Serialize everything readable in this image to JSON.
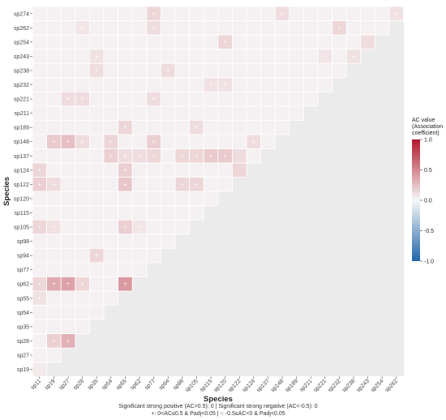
{
  "chart_data": {
    "type": "heatmap",
    "title": "",
    "xlabel": "Species",
    "ylabel": "Species",
    "species": [
      "sp11",
      "sp19",
      "sp27",
      "sp28",
      "sp35",
      "sp54",
      "sp55",
      "sp62",
      "sp77",
      "sp94",
      "sp98",
      "sp105",
      "sp115",
      "sp120",
      "sp122",
      "sp124",
      "sp137",
      "sp148",
      "sp189",
      "sp211",
      "sp221",
      "sp232",
      "sp238",
      "sp243",
      "sp254",
      "sp262",
      "sp274"
    ],
    "y_tick_labels": [
      "sp274",
      "sp262",
      "sp254",
      "sp243",
      "sp238",
      "sp232",
      "sp221",
      "sp211",
      "sp189",
      "sp148",
      "sp137",
      "sp124",
      "sp122",
      "sp120",
      "sp115",
      "sp105",
      "sp98",
      "sp94",
      "sp77",
      "sp62",
      "sp55",
      "sp54",
      "sp35",
      "sp28",
      "sp27",
      "sp19"
    ],
    "x_tick_labels": [
      "sp11",
      "sp19",
      "sp27",
      "sp28",
      "sp35",
      "sp54",
      "sp55",
      "sp62",
      "sp77",
      "sp94",
      "sp98",
      "sp105",
      "sp115",
      "sp120",
      "sp122",
      "sp124",
      "sp137",
      "sp148",
      "sp189",
      "sp211",
      "sp221",
      "sp232",
      "sp238",
      "sp243",
      "sp254",
      "sp262"
    ],
    "color_scale": {
      "title": "AC value (Association coefficient)",
      "title_lines": [
        "AC value",
        "(Association",
        "coefficient)"
      ],
      "min": -1.0,
      "max": 1.0,
      "ticks": [
        "1.0",
        "0.5",
        "0.0",
        "-0.5",
        "-1.0"
      ],
      "low_color": "#2166ac",
      "mid_color": "#f7f7f7",
      "high_color": "#b2182b"
    },
    "notable_cells": [
      {
        "row": "sp62",
        "col": "sp19",
        "value": 0.35,
        "sig": true
      },
      {
        "row": "sp62",
        "col": "sp27",
        "value": 0.38,
        "sig": true
      },
      {
        "row": "sp62",
        "col": "sp55",
        "value": 0.42,
        "sig": true
      },
      {
        "row": "sp62",
        "col": "sp28",
        "value": 0.15,
        "sig": true
      },
      {
        "row": "sp62",
        "col": "sp11",
        "value": 0.15,
        "sig": true
      },
      {
        "row": "sp28",
        "col": "sp27",
        "value": 0.32,
        "sig": true
      },
      {
        "row": "sp28",
        "col": "sp19",
        "value": 0.18,
        "sig": true
      },
      {
        "row": "sp105",
        "col": "sp11",
        "value": 0.15,
        "sig": true
      },
      {
        "row": "sp105",
        "col": "sp19",
        "value": 0.1,
        "sig": true
      },
      {
        "row": "sp105",
        "col": "sp55",
        "value": 0.18,
        "sig": true
      },
      {
        "row": "sp105",
        "col": "sp62",
        "value": 0.08,
        "sig": true
      },
      {
        "row": "sp122",
        "col": "sp11",
        "value": 0.18,
        "sig": true
      },
      {
        "row": "sp122",
        "col": "sp19",
        "value": 0.12,
        "sig": true
      },
      {
        "row": "sp122",
        "col": "sp55",
        "value": 0.22,
        "sig": true
      },
      {
        "row": "sp122",
        "col": "sp98",
        "value": 0.15,
        "sig": true
      },
      {
        "row": "sp122",
        "col": "sp105",
        "value": 0.15,
        "sig": true
      },
      {
        "row": "sp124",
        "col": "sp11",
        "value": 0.15,
        "sig": true
      },
      {
        "row": "sp124",
        "col": "sp55",
        "value": 0.18,
        "sig": true
      },
      {
        "row": "sp137",
        "col": "sp54",
        "value": 0.18,
        "sig": true
      },
      {
        "row": "sp137",
        "col": "sp55",
        "value": 0.12,
        "sig": true
      },
      {
        "row": "sp137",
        "col": "sp62",
        "value": 0.12,
        "sig": true
      },
      {
        "row": "sp137",
        "col": "sp77",
        "value": 0.15,
        "sig": true
      },
      {
        "row": "sp137",
        "col": "sp98",
        "value": 0.15,
        "sig": true
      },
      {
        "row": "sp137",
        "col": "sp105",
        "value": 0.15,
        "sig": true
      },
      {
        "row": "sp137",
        "col": "sp115",
        "value": 0.2,
        "sig": true
      },
      {
        "row": "sp137",
        "col": "sp120",
        "value": 0.2,
        "sig": true
      },
      {
        "row": "sp137",
        "col": "sp122",
        "value": 0.12,
        "sig": false
      },
      {
        "row": "sp148",
        "col": "sp19",
        "value": 0.2,
        "sig": true
      },
      {
        "row": "sp148",
        "col": "sp27",
        "value": 0.25,
        "sig": true
      },
      {
        "row": "sp148",
        "col": "sp28",
        "value": 0.12,
        "sig": true
      },
      {
        "row": "sp148",
        "col": "sp54",
        "value": 0.15,
        "sig": true
      },
      {
        "row": "sp148",
        "col": "sp77",
        "value": 0.18,
        "sig": true
      },
      {
        "row": "sp148",
        "col": "sp124",
        "value": 0.12,
        "sig": true
      },
      {
        "row": "sp124",
        "col": "sp122",
        "value": 0.15,
        "sig": false
      },
      {
        "row": "sp189",
        "col": "sp55",
        "value": 0.15,
        "sig": true
      },
      {
        "row": "sp189",
        "col": "sp105",
        "value": 0.12,
        "sig": true
      },
      {
        "row": "sp221",
        "col": "sp27",
        "value": 0.12,
        "sig": true
      },
      {
        "row": "sp221",
        "col": "sp28",
        "value": 0.12,
        "sig": true
      },
      {
        "row": "sp221",
        "col": "sp77",
        "value": 0.12,
        "sig": true
      },
      {
        "row": "sp232",
        "col": "sp115",
        "value": 0.1,
        "sig": true
      },
      {
        "row": "sp232",
        "col": "sp120",
        "value": 0.1,
        "sig": true
      },
      {
        "row": "sp238",
        "col": "sp35",
        "value": 0.12,
        "sig": true
      },
      {
        "row": "sp238",
        "col": "sp94",
        "value": 0.12,
        "sig": true
      },
      {
        "row": "sp243",
        "col": "sp35",
        "value": 0.1,
        "sig": true
      },
      {
        "row": "sp243",
        "col": "sp221",
        "value": 0.08,
        "sig": true
      },
      {
        "row": "sp243",
        "col": "sp238",
        "value": 0.1,
        "sig": true
      },
      {
        "row": "sp254",
        "col": "sp120",
        "value": 0.15,
        "sig": true
      },
      {
        "row": "sp254",
        "col": "sp243",
        "value": 0.12,
        "sig": false
      },
      {
        "row": "sp262",
        "col": "sp28",
        "value": 0.08,
        "sig": true
      },
      {
        "row": "sp262",
        "col": "sp77",
        "value": 0.12,
        "sig": true
      },
      {
        "row": "sp262",
        "col": "sp232",
        "value": 0.15,
        "sig": true
      },
      {
        "row": "sp274",
        "col": "sp77",
        "value": 0.15,
        "sig": true
      },
      {
        "row": "sp274",
        "col": "sp148",
        "value": 0.12,
        "sig": true
      },
      {
        "row": "sp274",
        "col": "sp262",
        "value": 0.1,
        "sig": true
      },
      {
        "row": "sp94",
        "col": "sp35",
        "value": 0.15,
        "sig": true
      },
      {
        "row": "sp55",
        "col": "sp11",
        "value": 0.1,
        "sig": true
      },
      {
        "row": "sp19",
        "col": "sp11",
        "value": 0.06,
        "sig": false
      }
    ],
    "background_value": 0.03,
    "sig_marker": "+",
    "caption_lines": [
      "Significant strong positive (AC>0.5): 0 | Significant strong negative (AC<-0.5): 0",
      "+: 0<AC≤0.5 & Padj<0.05 | -: -0.5≤AC<0 & Padj<0.05"
    ]
  }
}
